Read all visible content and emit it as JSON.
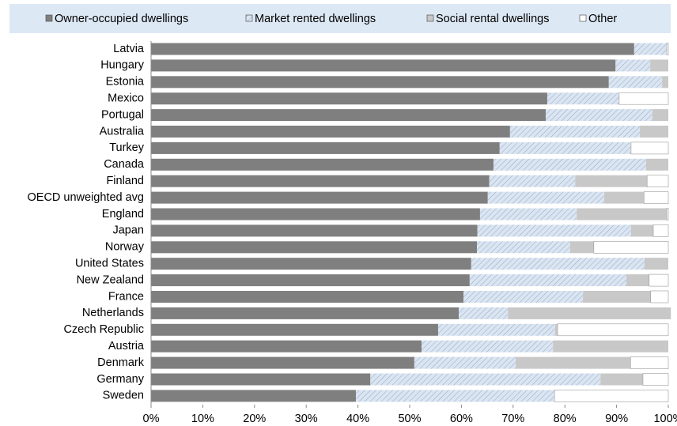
{
  "chart_data": {
    "type": "stacked-bar-horizontal",
    "categories": [
      "Latvia",
      "Hungary",
      "Estonia",
      "Mexico",
      "Portugal",
      "Australia",
      "Turkey",
      "Canada",
      "Finland",
      "OECD unweighted avg",
      "England",
      "Japan",
      "Norway",
      "United States",
      "New Zealand",
      "France",
      "Netherlands",
      "Czech Republic",
      "Austria",
      "Denmark",
      "Germany",
      "Sweden"
    ],
    "series": [
      {
        "name": "Owner-occupied dwellings",
        "color": "#7f7f7f",
        "values": [
          93.4,
          89.8,
          88.5,
          76.6,
          76.3,
          69.4,
          67.4,
          66.2,
          65.4,
          65.1,
          63.6,
          63.1,
          63.0,
          61.9,
          61.6,
          60.4,
          59.5,
          55.5,
          52.3,
          50.9,
          42.4,
          39.6
        ]
      },
      {
        "name": "Market rented dwellings",
        "color": "#dbe5f1",
        "pattern": "hatch",
        "values": [
          6.3,
          6.7,
          10.3,
          13.9,
          20.6,
          25.1,
          25.4,
          29.5,
          16.6,
          22.5,
          18.7,
          29.7,
          18.0,
          33.5,
          30.3,
          23.1,
          9.5,
          22.6,
          25.4,
          19.6,
          44.5,
          38.4
        ]
      },
      {
        "name": "Social rental dwellings",
        "color": "#c8c8c8",
        "values": [
          0,
          3.5,
          1.2,
          0,
          3.1,
          5.5,
          0,
          4.3,
          13.9,
          7.7,
          17.4,
          4.3,
          4.6,
          4.6,
          4.4,
          13.1,
          31.5,
          0.5,
          22.3,
          22.2,
          8.2,
          0
        ]
      },
      {
        "name": "Other",
        "color": "#ffffff",
        "values": [
          0.3,
          0,
          0,
          9.5,
          0,
          0,
          7.2,
          0,
          4.1,
          4.7,
          0.3,
          2.9,
          14.4,
          0,
          3.7,
          3.4,
          0,
          21.4,
          0,
          7.3,
          4.9,
          22.0
        ]
      }
    ],
    "xlim": [
      0,
      100
    ],
    "xticks": [
      {
        "value": 0,
        "label": "0%"
      },
      {
        "value": 10,
        "label": "10%"
      },
      {
        "value": 20,
        "label": "20%"
      },
      {
        "value": 30,
        "label": "30%"
      },
      {
        "value": 40,
        "label": "40%"
      },
      {
        "value": 50,
        "label": "50%"
      },
      {
        "value": 60,
        "label": "60%"
      },
      {
        "value": 70,
        "label": "70%"
      },
      {
        "value": 80,
        "label": "80%"
      },
      {
        "value": 90,
        "label": "90%"
      },
      {
        "value": 100,
        "label": "100%"
      }
    ],
    "legend": "top"
  }
}
